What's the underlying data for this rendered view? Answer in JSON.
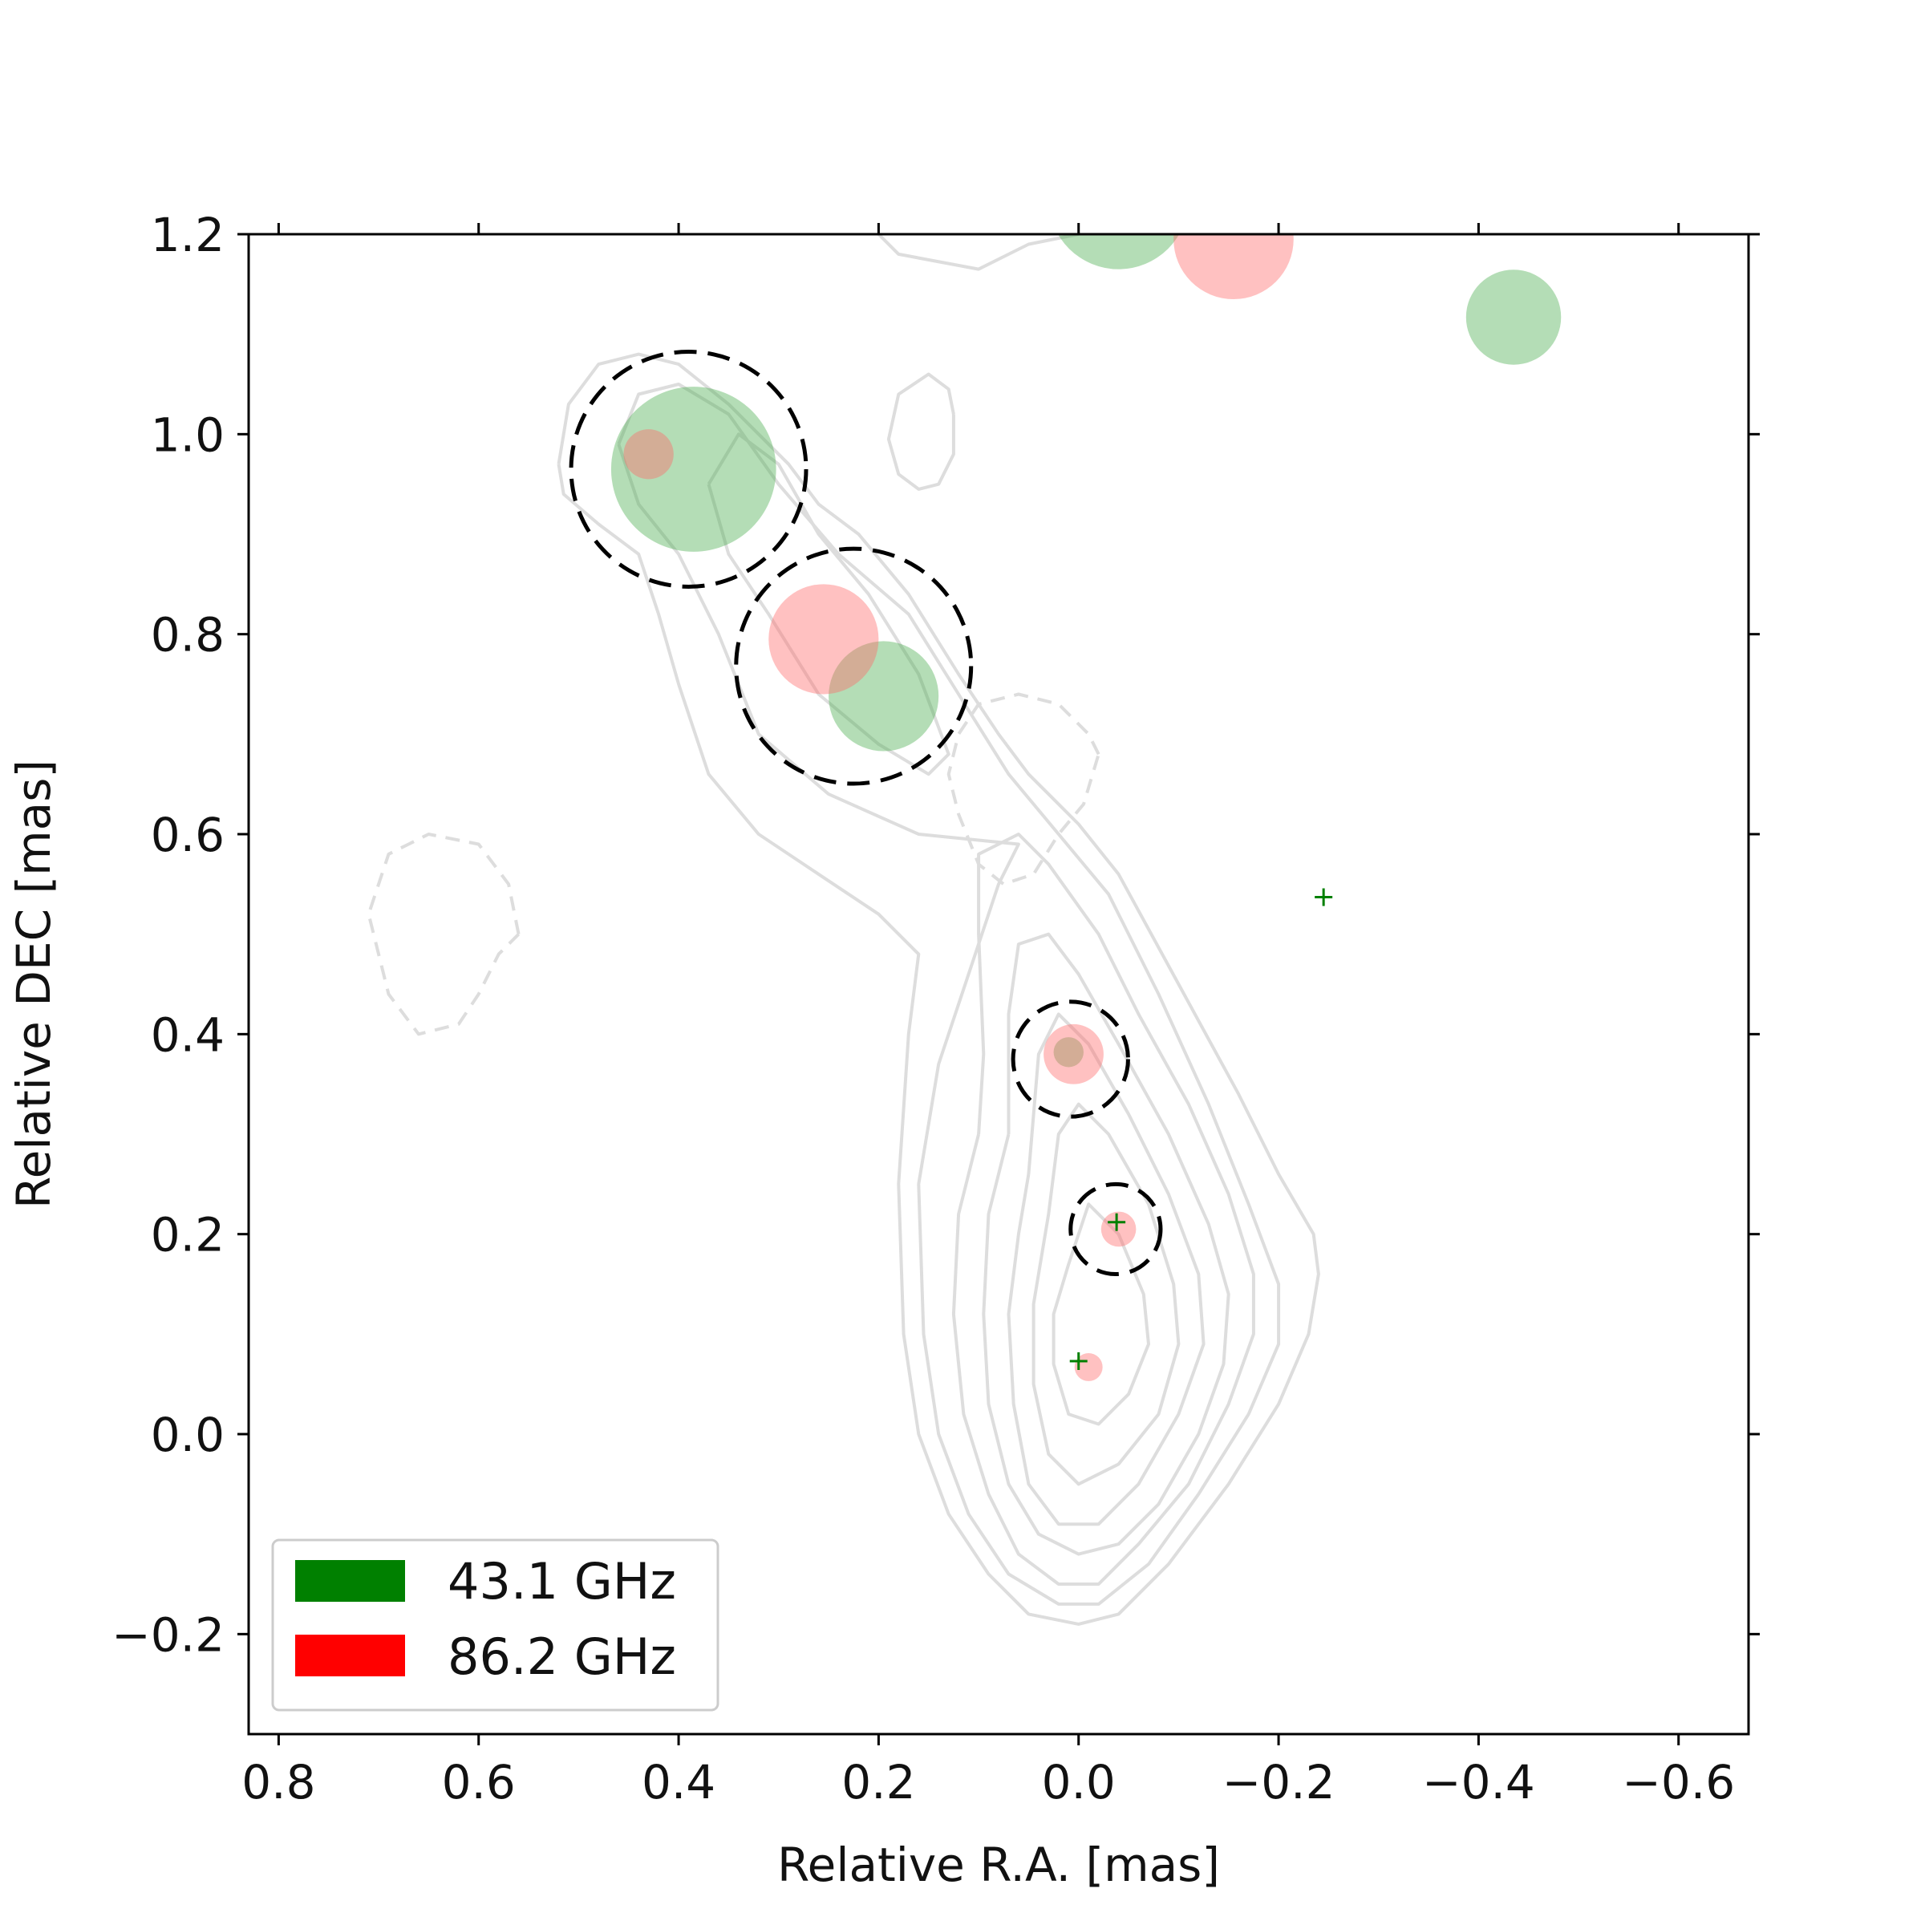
{
  "chart_data": {
    "type": "scatter",
    "title": "",
    "xlabel": "Relative R.A. [mas]",
    "ylabel": "Relative DEC [mas]",
    "xlim": [
      0.83,
      -0.67
    ],
    "ylim": [
      -0.3,
      1.2
    ],
    "xticks": [
      0.8,
      0.6,
      0.4,
      0.2,
      0.0,
      -0.2,
      -0.4,
      -0.6
    ],
    "yticks": [
      -0.2,
      0.0,
      0.2,
      0.4,
      0.6,
      0.8,
      1.0,
      1.2
    ],
    "xtick_labels": [
      "0.8",
      "0.6",
      "0.4",
      "0.2",
      "0.0",
      "−0.2",
      "−0.4",
      "−0.6"
    ],
    "ytick_labels": [
      "−0.2",
      "0.0",
      "0.2",
      "0.4",
      "0.6",
      "0.8",
      "1.0",
      "1.2"
    ],
    "grid": false,
    "legend_position": "bottom-left",
    "legend": [
      {
        "label": "43.1 GHz",
        "color": "#008000"
      },
      {
        "label": "86.2 GHz",
        "color": "#ff0000"
      }
    ],
    "series": [
      {
        "name": "43.1 GHz",
        "color": "#008000",
        "components": [
          {
            "x": 0.385,
            "y": 0.965,
            "diameter": 0.165
          },
          {
            "x": 0.195,
            "y": 0.738,
            "diameter": 0.11
          },
          {
            "x": -0.04,
            "y": 1.235,
            "diameter": 0.14
          },
          {
            "x": -0.435,
            "y": 1.117,
            "diameter": 0.095
          },
          {
            "x": 0.01,
            "y": 0.382,
            "diameter": 0.03
          },
          {
            "x": -0.245,
            "y": 0.537,
            "diameter": 0.0
          },
          {
            "x": -0.038,
            "y": 0.212,
            "diameter": 0.0
          },
          {
            "x": 0.0,
            "y": 0.073,
            "diameter": 0.0
          }
        ]
      },
      {
        "name": "86.2 GHz",
        "color": "#ff0000",
        "components": [
          {
            "x": 0.43,
            "y": 0.98,
            "diameter": 0.05
          },
          {
            "x": 0.255,
            "y": 0.795,
            "diameter": 0.11
          },
          {
            "x": -0.155,
            "y": 1.195,
            "diameter": 0.12
          },
          {
            "x": 0.005,
            "y": 0.38,
            "diameter": 0.06
          },
          {
            "x": -0.04,
            "y": 0.205,
            "diameter": 0.035
          },
          {
            "x": -0.01,
            "y": 0.067,
            "diameter": 0.028
          }
        ]
      }
    ],
    "matched_regions": [
      {
        "x": 0.39,
        "y": 0.965,
        "diameter": 0.235
      },
      {
        "x": 0.225,
        "y": 0.768,
        "diameter": 0.235
      },
      {
        "x": 0.008,
        "y": 0.375,
        "diameter": 0.115
      },
      {
        "x": -0.037,
        "y": 0.205,
        "diameter": 0.09
      }
    ],
    "contours": {
      "color": "#dddddd",
      "solid": [
        [
          [
            0.2,
            1.2
          ],
          [
            0.18,
            1.18
          ],
          [
            0.1,
            1.165
          ],
          [
            0.05,
            1.19
          ],
          [
            0.0,
            1.2
          ]
        ],
        [
          [
            0.125,
            1.02
          ],
          [
            0.125,
            0.98
          ],
          [
            0.14,
            0.95
          ],
          [
            0.16,
            0.945
          ],
          [
            0.18,
            0.96
          ],
          [
            0.19,
            0.995
          ],
          [
            0.18,
            1.04
          ],
          [
            0.15,
            1.06
          ],
          [
            0.13,
            1.045
          ],
          [
            0.125,
            1.02
          ]
        ],
        [
          [
            0.52,
            0.97
          ],
          [
            0.51,
            1.03
          ],
          [
            0.48,
            1.07
          ],
          [
            0.44,
            1.08
          ],
          [
            0.4,
            1.07
          ],
          [
            0.35,
            1.03
          ],
          [
            0.29,
            0.97
          ],
          [
            0.26,
            0.93
          ],
          [
            0.22,
            0.9
          ],
          [
            0.17,
            0.84
          ],
          [
            0.12,
            0.76
          ],
          [
            0.08,
            0.7
          ],
          [
            0.05,
            0.66
          ],
          [
            0.03,
            0.64
          ],
          [
            0.0,
            0.61
          ],
          [
            -0.04,
            0.56
          ],
          [
            -0.1,
            0.45
          ],
          [
            -0.16,
            0.34
          ],
          [
            -0.2,
            0.26
          ],
          [
            -0.235,
            0.2
          ],
          [
            -0.24,
            0.16
          ],
          [
            -0.23,
            0.1
          ],
          [
            -0.2,
            0.03
          ],
          [
            -0.15,
            -0.05
          ],
          [
            -0.09,
            -0.13
          ],
          [
            -0.04,
            -0.18
          ],
          [
            0.0,
            -0.19
          ],
          [
            0.05,
            -0.18
          ],
          [
            0.09,
            -0.14
          ],
          [
            0.13,
            -0.08
          ],
          [
            0.16,
            0.0
          ],
          [
            0.175,
            0.1
          ],
          [
            0.18,
            0.25
          ],
          [
            0.17,
            0.4
          ],
          [
            0.16,
            0.48
          ],
          [
            0.2,
            0.52
          ],
          [
            0.26,
            0.56
          ],
          [
            0.32,
            0.6
          ],
          [
            0.37,
            0.66
          ],
          [
            0.4,
            0.75
          ],
          [
            0.42,
            0.82
          ],
          [
            0.44,
            0.88
          ],
          [
            0.48,
            0.91
          ],
          [
            0.515,
            0.94
          ],
          [
            0.52,
            0.97
          ]
        ],
        [
          [
            0.46,
            0.99
          ],
          [
            0.44,
            1.04
          ],
          [
            0.4,
            1.05
          ],
          [
            0.35,
            1.02
          ],
          [
            0.3,
            0.95
          ],
          [
            0.24,
            0.88
          ],
          [
            0.17,
            0.82
          ],
          [
            0.12,
            0.74
          ],
          [
            0.07,
            0.66
          ],
          [
            0.02,
            0.6
          ],
          [
            -0.03,
            0.54
          ],
          [
            -0.08,
            0.44
          ],
          [
            -0.13,
            0.33
          ],
          [
            -0.17,
            0.23
          ],
          [
            -0.2,
            0.15
          ],
          [
            -0.2,
            0.09
          ],
          [
            -0.17,
            0.02
          ],
          [
            -0.12,
            -0.06
          ],
          [
            -0.07,
            -0.13
          ],
          [
            -0.02,
            -0.17
          ],
          [
            0.02,
            -0.17
          ],
          [
            0.07,
            -0.14
          ],
          [
            0.11,
            -0.08
          ],
          [
            0.14,
            0.0
          ],
          [
            0.155,
            0.1
          ],
          [
            0.16,
            0.25
          ],
          [
            0.14,
            0.37
          ],
          [
            0.11,
            0.46
          ],
          [
            0.08,
            0.55
          ],
          [
            0.06,
            0.59
          ],
          [
            0.16,
            0.6
          ],
          [
            0.25,
            0.64
          ],
          [
            0.32,
            0.7
          ],
          [
            0.36,
            0.8
          ],
          [
            0.4,
            0.88
          ],
          [
            0.44,
            0.93
          ],
          [
            0.46,
            0.99
          ]
        ],
        [
          [
            0.37,
            0.95
          ],
          [
            0.34,
            1.0
          ],
          [
            0.3,
            0.97
          ],
          [
            0.26,
            0.9
          ],
          [
            0.21,
            0.84
          ],
          [
            0.16,
            0.76
          ],
          [
            0.13,
            0.68
          ],
          [
            0.15,
            0.66
          ],
          [
            0.2,
            0.69
          ],
          [
            0.26,
            0.74
          ],
          [
            0.31,
            0.82
          ],
          [
            0.35,
            0.88
          ],
          [
            0.37,
            0.95
          ]
        ],
        [
          [
            0.1,
            0.3
          ],
          [
            0.095,
            0.38
          ],
          [
            0.1,
            0.5
          ],
          [
            0.1,
            0.58
          ],
          [
            0.06,
            0.6
          ],
          [
            0.03,
            0.57
          ],
          [
            -0.02,
            0.5
          ],
          [
            -0.06,
            0.42
          ],
          [
            -0.11,
            0.33
          ],
          [
            -0.15,
            0.24
          ],
          [
            -0.175,
            0.16
          ],
          [
            -0.175,
            0.1
          ],
          [
            -0.15,
            0.03
          ],
          [
            -0.11,
            -0.05
          ],
          [
            -0.06,
            -0.11
          ],
          [
            -0.02,
            -0.15
          ],
          [
            0.02,
            -0.15
          ],
          [
            0.06,
            -0.12
          ],
          [
            0.09,
            -0.06
          ],
          [
            0.115,
            0.02
          ],
          [
            0.125,
            0.12
          ],
          [
            0.12,
            0.22
          ],
          [
            0.1,
            0.3
          ]
        ],
        [
          [
            0.07,
            0.3
          ],
          [
            0.07,
            0.42
          ],
          [
            0.06,
            0.49
          ],
          [
            0.03,
            0.5
          ],
          [
            0.0,
            0.46
          ],
          [
            -0.04,
            0.39
          ],
          [
            -0.09,
            0.3
          ],
          [
            -0.13,
            0.21
          ],
          [
            -0.15,
            0.14
          ],
          [
            -0.145,
            0.07
          ],
          [
            -0.12,
            0.0
          ],
          [
            -0.08,
            -0.07
          ],
          [
            -0.04,
            -0.11
          ],
          [
            0.0,
            -0.12
          ],
          [
            0.04,
            -0.1
          ],
          [
            0.07,
            -0.05
          ],
          [
            0.09,
            0.03
          ],
          [
            0.095,
            0.12
          ],
          [
            0.09,
            0.22
          ],
          [
            0.07,
            0.3
          ]
        ],
        [
          [
            0.05,
            0.26
          ],
          [
            0.04,
            0.38
          ],
          [
            0.02,
            0.42
          ],
          [
            -0.01,
            0.39
          ],
          [
            -0.05,
            0.32
          ],
          [
            -0.09,
            0.24
          ],
          [
            -0.12,
            0.16
          ],
          [
            -0.125,
            0.09
          ],
          [
            -0.1,
            0.02
          ],
          [
            -0.06,
            -0.05
          ],
          [
            -0.02,
            -0.09
          ],
          [
            0.02,
            -0.09
          ],
          [
            0.05,
            -0.05
          ],
          [
            0.065,
            0.03
          ],
          [
            0.07,
            0.12
          ],
          [
            0.06,
            0.2
          ],
          [
            0.05,
            0.26
          ]
        ],
        [
          [
            0.03,
            0.22
          ],
          [
            0.02,
            0.3
          ],
          [
            0.0,
            0.33
          ],
          [
            -0.03,
            0.3
          ],
          [
            -0.07,
            0.23
          ],
          [
            -0.095,
            0.15
          ],
          [
            -0.1,
            0.09
          ],
          [
            -0.08,
            0.02
          ],
          [
            -0.04,
            -0.03
          ],
          [
            0.0,
            -0.05
          ],
          [
            0.03,
            -0.02
          ],
          [
            0.045,
            0.05
          ],
          [
            0.045,
            0.13
          ],
          [
            0.03,
            0.22
          ]
        ],
        [
          [
            0.01,
            0.17
          ],
          [
            -0.01,
            0.23
          ],
          [
            -0.04,
            0.2
          ],
          [
            -0.065,
            0.14
          ],
          [
            -0.07,
            0.09
          ],
          [
            -0.05,
            0.04
          ],
          [
            -0.02,
            0.01
          ],
          [
            0.01,
            0.02
          ],
          [
            0.025,
            0.07
          ],
          [
            0.025,
            0.12
          ],
          [
            0.01,
            0.17
          ]
        ]
      ],
      "dashed": [
        [
          [
            -0.02,
            0.68
          ],
          [
            -0.01,
            0.7
          ],
          [
            0.02,
            0.73
          ],
          [
            0.06,
            0.74
          ],
          [
            0.1,
            0.73
          ],
          [
            0.12,
            0.7
          ],
          [
            0.13,
            0.66
          ],
          [
            0.12,
            0.62
          ],
          [
            0.1,
            0.57
          ],
          [
            0.075,
            0.55
          ],
          [
            0.045,
            0.56
          ],
          [
            0.02,
            0.6
          ],
          [
            -0.005,
            0.63
          ],
          [
            -0.02,
            0.68
          ]
        ],
        [
          [
            0.56,
            0.5
          ],
          [
            0.57,
            0.55
          ],
          [
            0.6,
            0.59
          ],
          [
            0.65,
            0.6
          ],
          [
            0.69,
            0.58
          ],
          [
            0.71,
            0.52
          ],
          [
            0.69,
            0.44
          ],
          [
            0.66,
            0.4
          ],
          [
            0.62,
            0.41
          ],
          [
            0.6,
            0.44
          ],
          [
            0.58,
            0.48
          ],
          [
            0.56,
            0.5
          ]
        ]
      ]
    }
  }
}
